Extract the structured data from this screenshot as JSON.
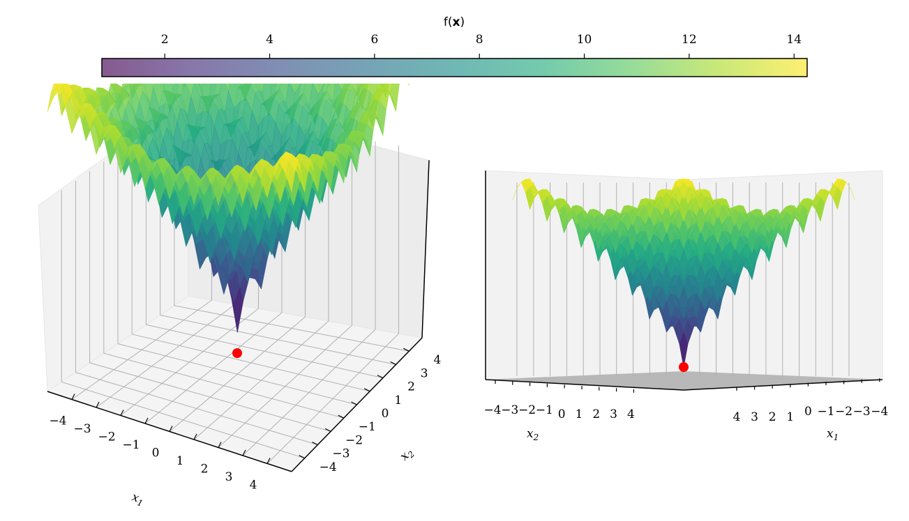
{
  "chart_data": [
    {
      "type": "colorbar",
      "title": "f(x)",
      "title_plain": "f(",
      "title_bold": "x",
      "title_close": ")",
      "colormap": "viridis",
      "range": [
        0.8,
        14.25
      ],
      "ticks": [
        2,
        4,
        6,
        8,
        10,
        12,
        14
      ],
      "tick_labels": [
        "2",
        "4",
        "6",
        "8",
        "10",
        "12",
        "14"
      ]
    },
    {
      "type": "surface3d",
      "view": "perspective",
      "function": "rastrigin-like",
      "domain": {
        "x1": [
          -5,
          5
        ],
        "x2": [
          -5,
          5
        ]
      },
      "z_range": [
        0.8,
        14.25
      ],
      "minimum": {
        "x1": 0,
        "x2": 0,
        "f": 0,
        "marker_color": "#ff0000"
      },
      "x1_label": "x",
      "x1_sub": "1",
      "x2_label": "x",
      "x2_sub": "2",
      "x1_ticks": [
        "−4",
        "−3",
        "−2",
        "−1",
        "0",
        "1",
        "2",
        "3",
        "4"
      ],
      "x2_ticks": [
        "−4",
        "−3",
        "−2",
        "−1",
        "0",
        "1",
        "2",
        "3",
        "4"
      ],
      "grid": true,
      "surface_alpha": 0.85
    },
    {
      "type": "surface3d",
      "view": "side",
      "function": "rastrigin-like",
      "minimum": {
        "x1": 0,
        "x2": 0,
        "f": 0,
        "marker_color": "#ff0000"
      },
      "x2_label": "x",
      "x2_sub": "2",
      "x1_label": "x",
      "x1_sub": "1",
      "x2_ticks": [
        "−4",
        "−3",
        "−2",
        "−1",
        "0",
        "1",
        "2",
        "3",
        "4"
      ],
      "x1_ticks": [
        "4",
        "3",
        "2",
        "1",
        "0",
        "−1",
        "−2",
        "−3",
        "−4"
      ],
      "grid": true
    }
  ],
  "colors": {
    "marker": "#ff0000",
    "pane": "#f2f2f2",
    "grid": "#b0b0b0",
    "axis": "#000000"
  }
}
